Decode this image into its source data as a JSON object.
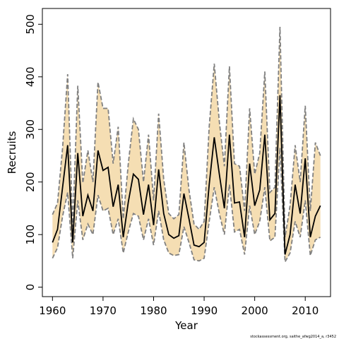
{
  "chart_data": {
    "type": "line",
    "xlabel": "Year",
    "ylabel": "Recruits",
    "footnote": "stockassessment.org, saithe_afwg2014_a, r3452",
    "xlim": [
      1958,
      2015
    ],
    "ylim": [
      -18,
      530
    ],
    "xticks": [
      1960,
      1970,
      1980,
      1990,
      2000,
      2010
    ],
    "yticks": [
      0,
      100,
      200,
      300,
      400,
      500
    ],
    "grid": false,
    "colors": {
      "band": "#f5deb3",
      "estimate": "#000000",
      "bounds": "#808080"
    },
    "x": [
      1960,
      1961,
      1962,
      1963,
      1964,
      1965,
      1966,
      1967,
      1968,
      1969,
      1970,
      1971,
      1972,
      1973,
      1974,
      1975,
      1976,
      1977,
      1978,
      1979,
      1980,
      1981,
      1982,
      1983,
      1984,
      1985,
      1986,
      1987,
      1988,
      1989,
      1990,
      1991,
      1992,
      1993,
      1994,
      1995,
      1996,
      1997,
      1998,
      1999,
      2000,
      2001,
      2002,
      2003,
      2004,
      2005,
      2006,
      2007,
      2008,
      2009,
      2010,
      2011,
      2012,
      2013
    ],
    "series": [
      {
        "role": "estimate",
        "values": [
          85,
          110,
          190,
          270,
          85,
          255,
          135,
          175,
          145,
          260,
          222,
          228,
          153,
          195,
          95,
          162,
          215,
          205,
          138,
          195,
          118,
          224,
          140,
          100,
          93,
          98,
          178,
          130,
          80,
          77,
          85,
          195,
          285,
          215,
          150,
          290,
          160,
          162,
          95,
          235,
          155,
          185,
          290,
          128,
          140,
          365,
          62,
          100,
          195,
          140,
          245,
          95,
          135,
          155
        ]
      },
      {
        "role": "upper",
        "values": [
          138,
          160,
          265,
          405,
          115,
          383,
          198,
          260,
          200,
          390,
          340,
          340,
          235,
          305,
          130,
          235,
          320,
          300,
          200,
          290,
          165,
          330,
          205,
          140,
          130,
          138,
          275,
          185,
          120,
          110,
          125,
          305,
          425,
          315,
          230,
          420,
          235,
          230,
          145,
          340,
          215,
          255,
          410,
          180,
          190,
          495,
          95,
          155,
          270,
          200,
          345,
          145,
          275,
          250
        ]
      },
      {
        "role": "lower",
        "values": [
          55,
          75,
          135,
          180,
          55,
          165,
          90,
          120,
          100,
          175,
          145,
          150,
          100,
          130,
          65,
          105,
          140,
          135,
          90,
          130,
          80,
          145,
          90,
          65,
          60,
          62,
          115,
          85,
          52,
          50,
          55,
          125,
          190,
          140,
          100,
          195,
          105,
          110,
          62,
          155,
          100,
          125,
          190,
          88,
          95,
          265,
          48,
          65,
          125,
          95,
          165,
          60,
          90,
          95
        ]
      }
    ]
  }
}
